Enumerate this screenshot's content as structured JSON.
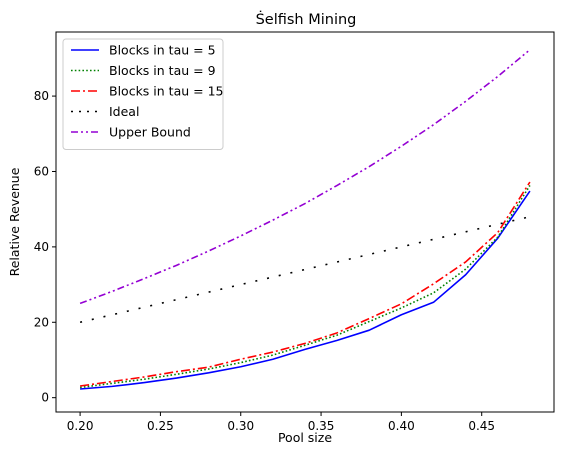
{
  "chart_data": {
    "type": "line",
    "title": "Ṡelfish Mining",
    "xlabel": "Pool size",
    "ylabel": "Relative Revenue",
    "xlim": [
      0.185,
      0.495
    ],
    "ylim": [
      -3.8,
      97
    ],
    "xticks": [
      0.2,
      0.25,
      0.3,
      0.35,
      0.4,
      0.45
    ],
    "xtick_labels": [
      "0.20",
      "0.25",
      "0.30",
      "0.35",
      "0.40",
      "0.45"
    ],
    "yticks": [
      0,
      20,
      40,
      60,
      80
    ],
    "ytick_labels": [
      "0",
      "20",
      "40",
      "60",
      "80"
    ],
    "grid": false,
    "legend_position": "top-left",
    "x": [
      0.2,
      0.22,
      0.24,
      0.26,
      0.28,
      0.3,
      0.32,
      0.34,
      0.36,
      0.38,
      0.4,
      0.42,
      0.44,
      0.46,
      0.48
    ],
    "series": [
      {
        "name": "Blocks in tau = 5",
        "color": "#0000ff",
        "style": "solid",
        "values": [
          2.3,
          3.0,
          4.0,
          5.2,
          6.6,
          8.2,
          10.2,
          12.8,
          15.2,
          17.9,
          22.0,
          25.3,
          32.6,
          42.3,
          54.8
        ]
      },
      {
        "name": "Blocks in tau = 9",
        "color": "#008000",
        "style": "dotted",
        "values": [
          2.7,
          3.8,
          4.9,
          6.2,
          7.6,
          9.3,
          11.3,
          13.9,
          16.6,
          20.2,
          23.8,
          27.8,
          34.1,
          42.6,
          56.3
        ]
      },
      {
        "name": "Blocks in tau = 15",
        "color": "#ff0000",
        "style": "dashdot",
        "values": [
          3.1,
          4.3,
          5.5,
          6.9,
          8.1,
          10.2,
          12.1,
          14.4,
          17.2,
          21.0,
          24.9,
          30.2,
          36.0,
          43.8,
          57.2
        ]
      },
      {
        "name": "Ideal",
        "color": "#000000",
        "style": "loosely-dotted",
        "values": [
          20,
          22,
          24,
          26,
          28,
          30,
          32,
          34,
          36,
          38,
          40,
          42,
          44,
          46,
          48
        ]
      },
      {
        "name": "Upper Bound",
        "color": "#9400d3",
        "style": "dashdotdot",
        "values": [
          25.0,
          28.2,
          31.6,
          35.1,
          38.9,
          42.9,
          47.1,
          51.5,
          56.3,
          61.3,
          66.7,
          72.4,
          78.6,
          85.2,
          92.3
        ]
      }
    ]
  }
}
